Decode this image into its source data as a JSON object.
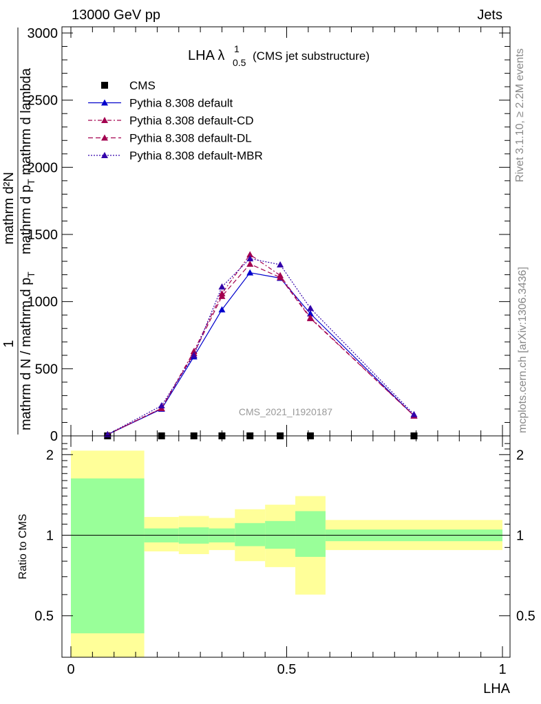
{
  "header": {
    "left": "13000 GeV pp",
    "right": "Jets"
  },
  "side_labels": {
    "rivet": "Rivet 3.1.10, ≥ 2.2M events",
    "mcplots": "mcplots.cern.ch [arXiv:1306.3436]"
  },
  "watermark": "CMS_2021_I1920187",
  "chart_data": [
    {
      "type": "line",
      "title_main": "LHA λ",
      "title_sup": "1",
      "title_sub": "0.5",
      "title_suffix": "(CMS jet substructure)",
      "xlabel": "LHA",
      "ylabel_numerator": "mathrm d²N",
      "ylabel_denominator_top": "mathrm d p",
      "ylabel_denominator_T": "T",
      "ylabel_denominator_rest": " mathrm d lambda",
      "ylabel_factor_num": "1",
      "ylabel_factor_den": "mathrm d N / mathrm d p",
      "ylabel_factor_T": "T",
      "xlim": [
        0,
        1
      ],
      "ylim": [
        0,
        3000
      ],
      "yticks": [
        0,
        500,
        1000,
        1500,
        2000,
        2500,
        3000
      ],
      "ytick_labels": [
        "0",
        "500",
        "1000",
        "1500",
        "2000",
        "2500",
        "3000"
      ],
      "legend_position": "top-left",
      "series": [
        {
          "name": "CMS",
          "marker": "square",
          "color": "#000000",
          "dash": "",
          "x": [
            0.085,
            0.21,
            0.285,
            0.35,
            0.415,
            0.485,
            0.555,
            0.795
          ],
          "y": [
            0,
            0,
            0,
            0,
            0,
            0,
            0,
            0
          ]
        },
        {
          "name": "Pythia 8.308 default",
          "marker": "triangle",
          "color": "#0000cc",
          "dash": "",
          "x": [
            0.085,
            0.21,
            0.285,
            0.35,
            0.415,
            0.485,
            0.555,
            0.795
          ],
          "y": [
            10,
            200,
            590,
            940,
            1215,
            1175,
            910,
            150
          ]
        },
        {
          "name": "Pythia 8.308 default-CD",
          "marker": "triangle",
          "color": "#a3004f",
          "dash": "6,3,2,3",
          "x": [
            0.085,
            0.21,
            0.285,
            0.35,
            0.415,
            0.485,
            0.555,
            0.795
          ],
          "y": [
            10,
            205,
            630,
            1060,
            1350,
            1195,
            880,
            150
          ]
        },
        {
          "name": "Pythia 8.308 default-DL",
          "marker": "triangle",
          "color": "#a3004f",
          "dash": "7,4",
          "x": [
            0.085,
            0.21,
            0.285,
            0.35,
            0.415,
            0.485,
            0.555,
            0.795
          ],
          "y": [
            10,
            205,
            615,
            1040,
            1280,
            1180,
            875,
            150
          ]
        },
        {
          "name": "Pythia 8.308 default-MBR",
          "marker": "triangle",
          "color": "#3300aa",
          "dash": "2,2",
          "x": [
            0.085,
            0.21,
            0.285,
            0.35,
            0.415,
            0.485,
            0.555,
            0.795
          ],
          "y": [
            10,
            225,
            600,
            1110,
            1320,
            1275,
            950,
            160
          ]
        }
      ]
    },
    {
      "type": "area",
      "ylabel": "Ratio to CMS",
      "xlabel": "LHA",
      "xlim": [
        0,
        1
      ],
      "ylim": [
        0.35,
        2.35
      ],
      "log_scale_y": true,
      "yticks": [
        0.5,
        1,
        2
      ],
      "ytick_labels": [
        "0.5",
        "1",
        "2"
      ],
      "xticks": [
        0,
        0.5,
        1
      ],
      "xtick_labels": [
        "0",
        "0.5",
        "1"
      ],
      "reference_line": 1,
      "bins": [
        {
          "lo": 0.0,
          "hi": 0.17,
          "stat": [
            0.43,
            1.63
          ],
          "total": [
            0.35,
            2.07
          ]
        },
        {
          "lo": 0.17,
          "hi": 0.25,
          "stat": [
            0.94,
            1.06
          ],
          "total": [
            0.87,
            1.17
          ]
        },
        {
          "lo": 0.25,
          "hi": 0.32,
          "stat": [
            0.93,
            1.07
          ],
          "total": [
            0.85,
            1.18
          ]
        },
        {
          "lo": 0.32,
          "hi": 0.38,
          "stat": [
            0.94,
            1.06
          ],
          "total": [
            0.88,
            1.16
          ]
        },
        {
          "lo": 0.38,
          "hi": 0.45,
          "stat": [
            0.91,
            1.11
          ],
          "total": [
            0.8,
            1.25
          ]
        },
        {
          "lo": 0.45,
          "hi": 0.52,
          "stat": [
            0.89,
            1.13
          ],
          "total": [
            0.76,
            1.3
          ]
        },
        {
          "lo": 0.52,
          "hi": 0.59,
          "stat": [
            0.83,
            1.23
          ],
          "total": [
            0.6,
            1.4
          ]
        },
        {
          "lo": 0.59,
          "hi": 1.0,
          "stat": [
            0.95,
            1.05
          ],
          "total": [
            0.88,
            1.14
          ]
        }
      ],
      "stat_color": "#99ff99",
      "total_color": "#ffff99"
    }
  ]
}
